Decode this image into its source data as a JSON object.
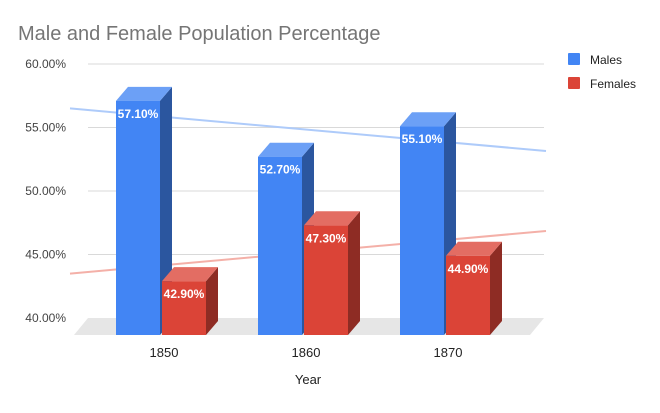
{
  "chart_data": {
    "type": "bar",
    "title": "Male and Female Population Percentage",
    "xlabel": "Year",
    "ylabel": "",
    "categories": [
      "1850",
      "1860",
      "1870"
    ],
    "series": [
      {
        "name": "Males",
        "values": [
          57.1,
          52.7,
          55.1
        ],
        "labels": [
          "57.10%",
          "52.70%",
          "55.10%"
        ],
        "color": "#4285f4"
      },
      {
        "name": "Females",
        "values": [
          42.9,
          47.3,
          44.9
        ],
        "labels": [
          "42.90%",
          "47.30%",
          "44.90%"
        ],
        "color": "#db4437"
      }
    ],
    "ylim": [
      40,
      60
    ],
    "yticks": [
      {
        "value": 40,
        "label": "40.00%"
      },
      {
        "value": 45,
        "label": "45.00%"
      },
      {
        "value": 50,
        "label": "50.00%"
      },
      {
        "value": 55,
        "label": "55.00%"
      },
      {
        "value": 60,
        "label": "60.00%"
      }
    ],
    "trendlines": [
      {
        "series": "Males",
        "color": "#aecbfa"
      },
      {
        "series": "Females",
        "color": "#f4b0a8"
      }
    ],
    "grid": true,
    "legend": "right",
    "style": "3d"
  }
}
